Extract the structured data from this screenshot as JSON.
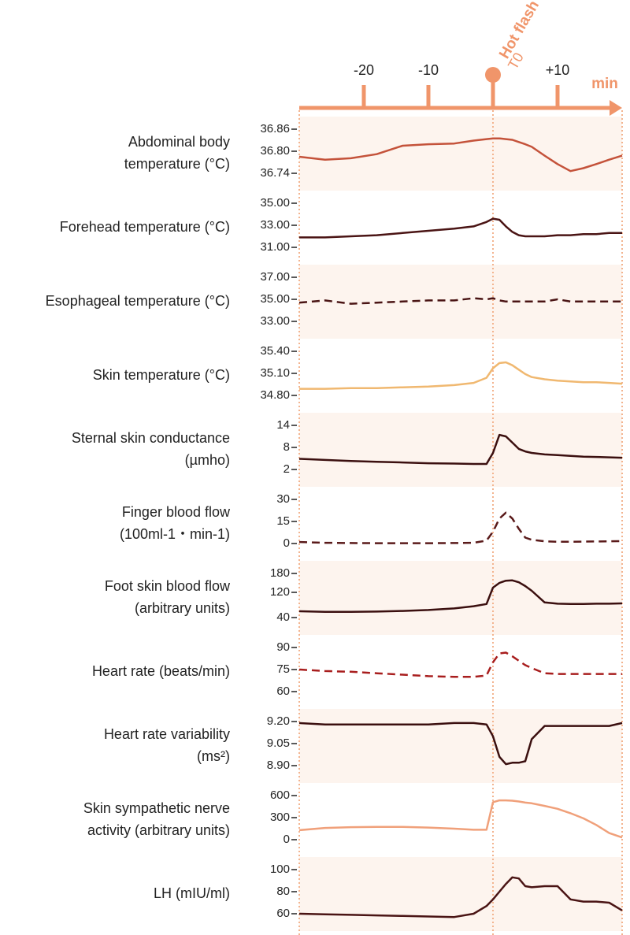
{
  "time_axis": {
    "xlim": [
      -30,
      20
    ],
    "xticks": [
      -20,
      -10,
      {
        "value": 0,
        "label": "T0"
      },
      {
        "value": 10,
        "label": "+10"
      }
    ],
    "unit": "min",
    "annotation": "Hot flash",
    "color": "#f0956a"
  },
  "chart_data": [
    {
      "type": "line",
      "ylabel": [
        "Abdominal body",
        "temperature (°C)"
      ],
      "color": "#c4523a",
      "dashed": false,
      "ylim": [
        36.74,
        36.86
      ],
      "yticks": [
        36.74,
        {
          "value": 36.8,
          "label": "36.80"
        },
        36.86
      ],
      "x": [
        -30,
        -26,
        -22,
        -18,
        -14,
        -10,
        -6,
        -3,
        -1,
        0,
        1,
        2,
        3,
        4,
        5,
        6,
        8,
        10,
        12,
        14,
        16,
        18,
        20
      ],
      "values": [
        36.785,
        36.777,
        36.781,
        36.792,
        36.815,
        36.819,
        36.821,
        36.829,
        36.833,
        36.835,
        36.835,
        36.833,
        36.831,
        36.825,
        36.819,
        36.812,
        36.788,
        36.765,
        36.746,
        36.754,
        36.765,
        36.777,
        36.788
      ]
    },
    {
      "type": "line",
      "ylabel": [
        "Forehead temperature (°C)"
      ],
      "color": "#4a1414",
      "dashed": false,
      "ylim": [
        31,
        35
      ],
      "yticks": [
        {
          "value": 31,
          "label": "31.00"
        },
        {
          "value": 33,
          "label": "33.00"
        },
        {
          "value": 35,
          "label": "35.00"
        }
      ],
      "x": [
        -30,
        -26,
        -22,
        -18,
        -14,
        -10,
        -6,
        -3,
        -1,
        0,
        1,
        2,
        3,
        4,
        5,
        6,
        8,
        10,
        12,
        14,
        16,
        18,
        20
      ],
      "values": [
        31.9,
        31.9,
        32.0,
        32.1,
        32.3,
        32.5,
        32.7,
        32.9,
        33.3,
        33.6,
        33.5,
        32.9,
        32.4,
        32.1,
        32.0,
        32.0,
        32.0,
        32.1,
        32.1,
        32.2,
        32.2,
        32.3,
        32.3
      ]
    },
    {
      "type": "line",
      "ylabel": [
        "Esophageal temperature (°C)"
      ],
      "color": "#4a1414",
      "dashed": true,
      "ylim": [
        33,
        37
      ],
      "yticks": [
        {
          "value": 33,
          "label": "33.00"
        },
        {
          "value": 35,
          "label": "35.00"
        },
        {
          "value": 37,
          "label": "37.00"
        }
      ],
      "x": [
        -30,
        -26,
        -22,
        -18,
        -14,
        -10,
        -6,
        -3,
        -1,
        0,
        1,
        2,
        3,
        4,
        5,
        6,
        8,
        10,
        12,
        14,
        16,
        18,
        20
      ],
      "values": [
        34.7,
        34.9,
        34.6,
        34.7,
        34.8,
        34.9,
        34.9,
        35.1,
        35.0,
        35.1,
        34.9,
        34.8,
        34.8,
        34.8,
        34.8,
        34.8,
        34.8,
        35.0,
        34.8,
        34.8,
        34.8,
        34.8,
        34.8
      ]
    },
    {
      "type": "line",
      "ylabel": [
        "Skin temperature (°C)"
      ],
      "color": "#f0b870",
      "dashed": false,
      "ylim": [
        34.8,
        35.4
      ],
      "yticks": [
        {
          "value": 34.8,
          "label": "34.80"
        },
        {
          "value": 35.1,
          "label": "35.10"
        },
        {
          "value": 35.4,
          "label": "35.40"
        }
      ],
      "x": [
        -30,
        -26,
        -22,
        -18,
        -14,
        -10,
        -6,
        -3,
        -1,
        0,
        1,
        2,
        3,
        4,
        5,
        6,
        8,
        10,
        12,
        14,
        16,
        18,
        20
      ],
      "values": [
        34.89,
        34.89,
        34.9,
        34.9,
        34.91,
        34.92,
        34.94,
        34.97,
        35.04,
        35.17,
        35.24,
        35.25,
        35.21,
        35.15,
        35.09,
        35.05,
        35.02,
        35.0,
        34.99,
        34.98,
        34.98,
        34.97,
        34.96
      ]
    },
    {
      "type": "line",
      "ylabel": [
        "Sternal skin conductance",
        "(µmho)"
      ],
      "color": "#3b0f0f",
      "dashed": false,
      "ylim": [
        2,
        14
      ],
      "yticks": [
        2,
        8,
        14
      ],
      "x": [
        -30,
        -26,
        -22,
        -18,
        -14,
        -10,
        -6,
        -3,
        -1,
        0,
        1,
        2,
        3,
        4,
        5,
        6,
        8,
        10,
        12,
        14,
        16,
        18,
        20
      ],
      "values": [
        4.9,
        4.6,
        4.3,
        4.1,
        3.9,
        3.7,
        3.6,
        3.5,
        3.5,
        6.5,
        11.4,
        11.0,
        9.3,
        7.6,
        6.9,
        6.5,
        6.1,
        5.9,
        5.7,
        5.5,
        5.4,
        5.3,
        5.2
      ]
    },
    {
      "type": "line",
      "ylabel": [
        "Finger blood flow",
        "(100ml-1・min-1)"
      ],
      "color": "#5a1a1a",
      "dashed": true,
      "ylim": [
        0,
        30
      ],
      "yticks": [
        0,
        15,
        30
      ],
      "x": [
        -30,
        -26,
        -22,
        -18,
        -14,
        -10,
        -6,
        -3,
        -1,
        0,
        1,
        2,
        3,
        4,
        5,
        6,
        8,
        10,
        12,
        14,
        16,
        18,
        20
      ],
      "values": [
        1,
        0.5,
        0.3,
        0.2,
        0.2,
        0.2,
        0.3,
        0.5,
        2,
        8,
        17,
        21,
        17,
        10,
        4,
        2.5,
        1.5,
        1.2,
        1.2,
        1.3,
        1.4,
        1.5,
        1.6
      ]
    },
    {
      "type": "line",
      "ylabel": [
        "Foot skin blood flow",
        "(arbitrary units)"
      ],
      "color": "#3b0f0f",
      "dashed": false,
      "ylim": [
        40,
        180
      ],
      "yticks": [
        40,
        120,
        180
      ],
      "x": [
        -30,
        -26,
        -22,
        -18,
        -14,
        -10,
        -6,
        -3,
        -1,
        0,
        1,
        2,
        3,
        4,
        5,
        6,
        8,
        10,
        12,
        14,
        16,
        18,
        20
      ],
      "values": [
        60,
        58,
        58,
        59,
        61,
        64,
        69,
        76,
        83,
        135,
        150,
        157,
        158,
        152,
        140,
        125,
        88,
        84,
        83,
        83,
        84,
        84,
        85
      ]
    },
    {
      "type": "line",
      "ylabel": [
        "Heart rate (beats/min)"
      ],
      "color": "#a81e1e",
      "dashed": true,
      "ylim": [
        60,
        90
      ],
      "yticks": [
        60,
        75,
        90
      ],
      "x": [
        -30,
        -26,
        -22,
        -18,
        -14,
        -10,
        -6,
        -3,
        -1,
        0,
        1,
        2,
        3,
        4,
        5,
        6,
        8,
        10,
        12,
        14,
        16,
        18,
        20
      ],
      "values": [
        75,
        74,
        73.5,
        72.5,
        71.5,
        70.5,
        70,
        70,
        71,
        80,
        86,
        86.5,
        84,
        81,
        78,
        76,
        72.5,
        72,
        72,
        72,
        72,
        72,
        72
      ]
    },
    {
      "type": "line",
      "ylabel": [
        "Heart rate variability",
        "(ms²)"
      ],
      "color": "#3b0f0f",
      "dashed": false,
      "ylim": [
        8.9,
        9.2
      ],
      "yticks": [
        {
          "value": 8.9,
          "label": "8.90"
        },
        9.05,
        {
          "value": 9.2,
          "label": "9.20"
        }
      ],
      "x": [
        -30,
        -26,
        -22,
        -18,
        -14,
        -10,
        -6,
        -3,
        -1,
        0,
        1,
        2,
        3,
        4,
        5,
        6,
        8,
        10,
        12,
        14,
        16,
        18,
        20
      ],
      "values": [
        9.19,
        9.18,
        9.18,
        9.18,
        9.18,
        9.18,
        9.19,
        9.19,
        9.18,
        9.1,
        8.96,
        8.91,
        8.92,
        8.92,
        8.93,
        9.08,
        9.17,
        9.17,
        9.17,
        9.17,
        9.17,
        9.17,
        9.19
      ]
    },
    {
      "type": "line",
      "ylabel": [
        "Skin sympathetic nerve",
        "activity (arbitrary units)"
      ],
      "color": "#f0a07a",
      "dashed": false,
      "ylim": [
        0,
        600
      ],
      "yticks": [
        0,
        300,
        600
      ],
      "x": [
        -30,
        -26,
        -22,
        -18,
        -14,
        -10,
        -6,
        -3,
        -1,
        0,
        1,
        2,
        3,
        4,
        5,
        6,
        8,
        10,
        12,
        14,
        16,
        18,
        20
      ],
      "values": [
        130,
        160,
        170,
        175,
        175,
        165,
        150,
        135,
        135,
        510,
        535,
        535,
        530,
        520,
        505,
        495,
        460,
        420,
        360,
        290,
        200,
        90,
        30
      ]
    },
    {
      "type": "line",
      "ylabel": [
        "LH (mIU/ml)"
      ],
      "color": "#4a1414",
      "dashed": false,
      "ylim": [
        60,
        100
      ],
      "yticks": [
        60,
        80,
        100
      ],
      "x": [
        -30,
        -26,
        -22,
        -18,
        -14,
        -10,
        -6,
        -3,
        -1,
        0,
        1,
        2,
        3,
        4,
        5,
        6,
        8,
        10,
        12,
        14,
        16,
        18,
        20
      ],
      "values": [
        60,
        59.5,
        59,
        58.5,
        58,
        57.5,
        57,
        60,
        67,
        73,
        80,
        87,
        93,
        92,
        85,
        84,
        85,
        85,
        73,
        71,
        71,
        70,
        63
      ]
    }
  ]
}
